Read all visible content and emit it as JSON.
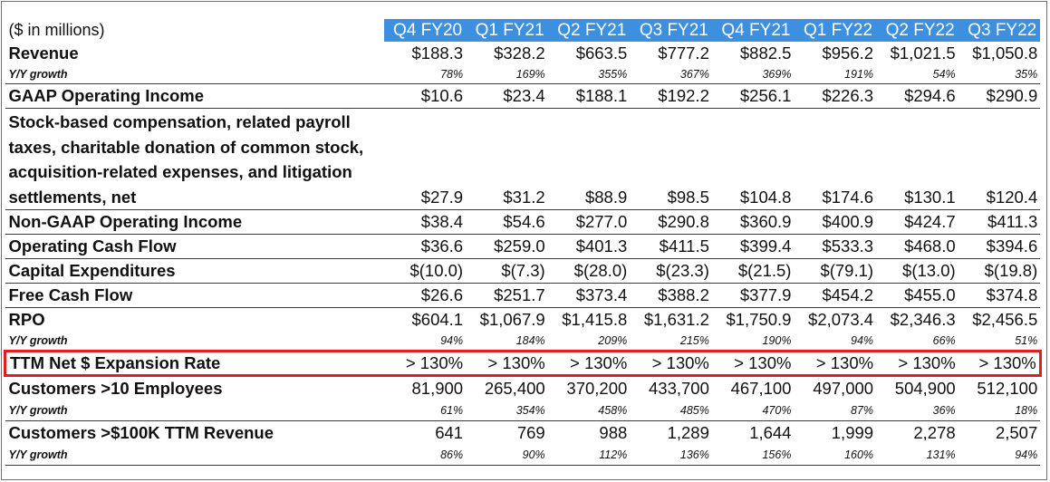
{
  "header": {
    "unit_label": "($ in millions)",
    "quarters": [
      "Q4 FY20",
      "Q1 FY21",
      "Q2 FY21",
      "Q3 FY21",
      "Q4 FY21",
      "Q1 FY22",
      "Q2 FY22",
      "Q3 FY22"
    ]
  },
  "colors": {
    "header_blue": "#3d8fe0",
    "highlight_red": "#e02020"
  },
  "rows": [
    {
      "label": "Revenue",
      "values": [
        "$188.3",
        "$328.2",
        "$663.5",
        "$777.2",
        "$882.5",
        "$956.2",
        "$1,021.5",
        "$1,050.8"
      ]
    },
    {
      "label": "Y/Y growth",
      "values": [
        "78%",
        "169%",
        "355%",
        "367%",
        "369%",
        "191%",
        "54%",
        "35%"
      ]
    },
    {
      "label": "GAAP Operating Income",
      "values": [
        "$10.6",
        "$23.4",
        "$188.1",
        "$192.2",
        "$256.1",
        "$226.3",
        "$294.6",
        "$290.9"
      ]
    },
    {
      "label": "Stock-based compensation, related payroll taxes, charitable donation of common stock, acquisition-related expenses, and litigation settlements, net",
      "values": [
        "$27.9",
        "$31.2",
        "$88.9",
        "$98.5",
        "$104.8",
        "$174.6",
        "$130.1",
        "$120.4"
      ]
    },
    {
      "label": "Non-GAAP Operating Income",
      "values": [
        "$38.4",
        "$54.6",
        "$277.0",
        "$290.8",
        "$360.9",
        "$400.9",
        "$424.7",
        "$411.3"
      ]
    },
    {
      "label": "Operating Cash Flow",
      "values": [
        "$36.6",
        "$259.0",
        "$401.3",
        "$411.5",
        "$399.4",
        "$533.3",
        "$468.0",
        "$394.6"
      ]
    },
    {
      "label": "Capital Expenditures",
      "values": [
        "$(10.0)",
        "$(7.3)",
        "$(28.0)",
        "$(23.3)",
        "$(21.5)",
        "$(79.1)",
        "$(13.0)",
        "$(19.8)"
      ]
    },
    {
      "label": "Free Cash Flow",
      "values": [
        "$26.6",
        "$251.7",
        "$373.4",
        "$388.2",
        "$377.9",
        "$454.2",
        "$455.0",
        "$374.8"
      ]
    },
    {
      "label": "RPO",
      "values": [
        "$604.1",
        "$1,067.9",
        "$1,415.8",
        "$1,631.2",
        "$1,750.9",
        "$2,073.4",
        "$2,346.3",
        "$2,456.5"
      ]
    },
    {
      "label": "Y/Y growth",
      "values": [
        "94%",
        "184%",
        "209%",
        "215%",
        "190%",
        "94%",
        "66%",
        "51%"
      ]
    },
    {
      "label": "TTM Net $ Expansion Rate",
      "values": [
        "> 130%",
        "> 130%",
        "> 130%",
        "> 130%",
        "> 130%",
        "> 130%",
        "> 130%",
        "> 130%"
      ]
    },
    {
      "label": "Customers >10 Employees",
      "values": [
        "81,900",
        "265,400",
        "370,200",
        "433,700",
        "467,100",
        "497,000",
        "504,900",
        "512,100"
      ]
    },
    {
      "label": "Y/Y growth",
      "values": [
        "61%",
        "354%",
        "458%",
        "485%",
        "470%",
        "87%",
        "36%",
        "18%"
      ]
    },
    {
      "label": "Customers >$100K TTM Revenue",
      "values": [
        "641",
        "769",
        "988",
        "1,289",
        "1,644",
        "1,999",
        "2,278",
        "2,507"
      ]
    },
    {
      "label": "Y/Y growth",
      "values": [
        "86%",
        "90%",
        "112%",
        "136%",
        "156%",
        "160%",
        "131%",
        "94%"
      ]
    }
  ]
}
